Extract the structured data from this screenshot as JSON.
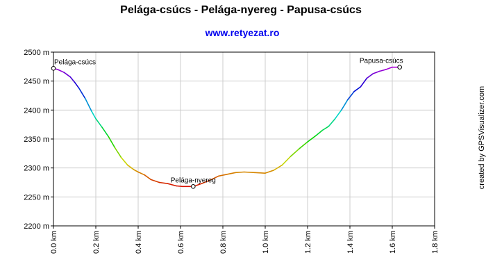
{
  "chart_data": {
    "type": "line",
    "title": "Pelága-csúcs - Pelága-nyereg - Papusa-csúcs",
    "subtitle": "www.retyezat.ro",
    "credit": "created by GPSVisualizer.com",
    "xlabel": "",
    "ylabel": "",
    "x_unit": "km",
    "y_unit": "m",
    "xlim": [
      0,
      1.8
    ],
    "ylim": [
      2200,
      2500
    ],
    "x_ticks": [
      "0.0 km",
      "0.2 km",
      "0.4 km",
      "0.6 km",
      "0.8 km",
      "1.0 km",
      "1.2 km",
      "1.4 km",
      "1.6 km",
      "1.8 km"
    ],
    "y_ticks": [
      "2200 m",
      "2250 m",
      "2300 m",
      "2350 m",
      "2400 m",
      "2450 m",
      "2500 m"
    ],
    "grid": true,
    "color_by": "elevation",
    "series": [
      {
        "x": [
          0.0,
          0.02,
          0.05,
          0.08,
          0.1,
          0.12,
          0.15,
          0.18,
          0.2,
          0.23,
          0.26,
          0.29,
          0.32,
          0.35,
          0.38,
          0.4,
          0.43,
          0.46,
          0.5,
          0.54,
          0.58,
          0.61,
          0.64,
          0.66,
          0.7,
          0.74,
          0.78,
          0.82,
          0.86,
          0.9,
          0.95,
          1.0,
          1.04,
          1.08,
          1.12,
          1.16,
          1.2,
          1.24,
          1.27,
          1.3,
          1.33,
          1.36,
          1.39,
          1.42,
          1.45,
          1.48,
          1.51,
          1.54,
          1.57,
          1.6,
          1.62,
          1.635
        ],
        "y": [
          2472,
          2470,
          2465,
          2457,
          2448,
          2438,
          2420,
          2398,
          2385,
          2370,
          2354,
          2335,
          2318,
          2305,
          2297,
          2293,
          2288,
          2280,
          2275,
          2273,
          2269,
          2268,
          2268,
          2268,
          2273,
          2279,
          2286,
          2289,
          2292,
          2293,
          2292,
          2291,
          2296,
          2305,
          2320,
          2333,
          2345,
          2356,
          2365,
          2372,
          2385,
          2400,
          2418,
          2432,
          2440,
          2455,
          2463,
          2467,
          2470,
          2474,
          2474,
          2474
        ]
      }
    ],
    "waypoints": [
      {
        "name": "Pelága-csúcs",
        "x": 0.0,
        "y": 2472
      },
      {
        "name": "Pelága-nyereg",
        "x": 0.66,
        "y": 2268
      },
      {
        "name": "Papusa-csúcs",
        "x": 1.635,
        "y": 2474
      }
    ]
  }
}
